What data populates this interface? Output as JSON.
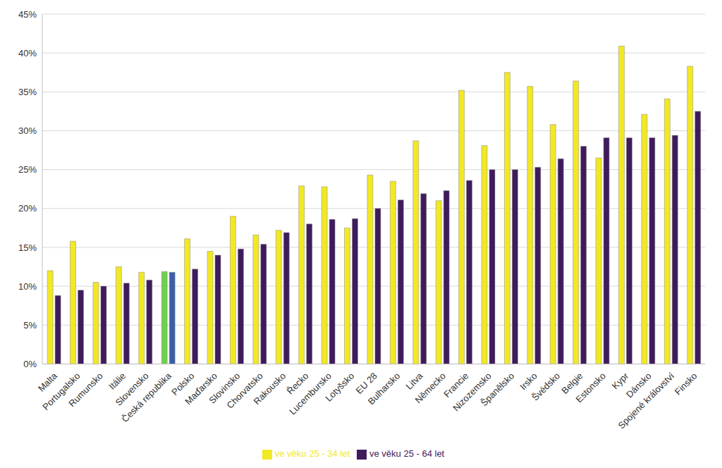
{
  "chart_data": {
    "type": "bar",
    "categories": [
      "Malta",
      "Portugalsko",
      "Rumunsko",
      "Itálie",
      "Slovensko",
      "Česká republika",
      "Polsko",
      "Maďarsko",
      "Slovinsko",
      "Chorvatsko",
      "Rakousko",
      "Řecko",
      "Lucembursko",
      "Lotyšsko",
      "EU 28",
      "Bulharsko",
      "Litva",
      "Německo",
      "Francie",
      "Nizozemsko",
      "Španělsko",
      "Irsko",
      "Švédsko",
      "Belgie",
      "Estonsko",
      "Kypr",
      "Dánsko",
      "Spojené království",
      "Finsko"
    ],
    "series": [
      {
        "name": "ve věku 25 - 34 let",
        "color": "#f2e824",
        "colors": [
          "#f2e824",
          "#f2e824",
          "#f2e824",
          "#f2e824",
          "#f2e824",
          "#6fd04e",
          "#f2e824",
          "#f2e824",
          "#f2e824",
          "#f2e824",
          "#f2e824",
          "#f2e824",
          "#f2e824",
          "#f2e824",
          "#f2e824",
          "#f2e824",
          "#f2e824",
          "#f2e824",
          "#f2e824",
          "#f2e824",
          "#f2e824",
          "#f2e824",
          "#f2e824",
          "#f2e824",
          "#f2e824",
          "#f2e824",
          "#f2e824",
          "#f2e824",
          "#f2e824"
        ],
        "values": [
          12.0,
          15.8,
          10.5,
          12.5,
          11.8,
          11.9,
          16.1,
          14.5,
          19.0,
          16.6,
          17.2,
          22.9,
          22.8,
          17.5,
          24.3,
          23.5,
          28.7,
          21.0,
          35.2,
          28.1,
          37.5,
          35.7,
          30.8,
          36.4,
          26.5,
          40.9,
          32.1,
          34.1,
          38.3
        ]
      },
      {
        "name": "ve věku 25 - 64 let",
        "color": "#3f1a5c",
        "colors": [
          "#3f1a5c",
          "#3f1a5c",
          "#3f1a5c",
          "#3f1a5c",
          "#3f1a5c",
          "#3b5ea8",
          "#3f1a5c",
          "#3f1a5c",
          "#3f1a5c",
          "#3f1a5c",
          "#3f1a5c",
          "#3f1a5c",
          "#3f1a5c",
          "#3f1a5c",
          "#3f1a5c",
          "#3f1a5c",
          "#3f1a5c",
          "#3f1a5c",
          "#3f1a5c",
          "#3f1a5c",
          "#3f1a5c",
          "#3f1a5c",
          "#3f1a5c",
          "#3f1a5c",
          "#3f1a5c",
          "#3f1a5c",
          "#3f1a5c",
          "#3f1a5c",
          "#3f1a5c"
        ],
        "values": [
          8.8,
          9.5,
          10.0,
          10.4,
          10.8,
          11.8,
          12.2,
          14.0,
          14.8,
          15.4,
          16.9,
          18.0,
          18.6,
          18.7,
          20.0,
          21.1,
          21.9,
          22.3,
          23.6,
          25.0,
          25.0,
          25.3,
          26.4,
          28.0,
          29.1,
          29.1,
          29.1,
          29.4,
          32.5
        ]
      }
    ],
    "ylim": [
      0,
      45
    ],
    "yticks": [
      {
        "value": 0,
        "label": "0%"
      },
      {
        "value": 5,
        "label": "5%"
      },
      {
        "value": 10,
        "label": "10%"
      },
      {
        "value": 15,
        "label": "15%"
      },
      {
        "value": 20,
        "label": "20%"
      },
      {
        "value": 25,
        "label": "25%"
      },
      {
        "value": 30,
        "label": "30%"
      },
      {
        "value": 35,
        "label": "35%"
      },
      {
        "value": 40,
        "label": "40%"
      },
      {
        "value": 45,
        "label": "45%"
      }
    ],
    "grid": true,
    "legend": "bottom"
  }
}
